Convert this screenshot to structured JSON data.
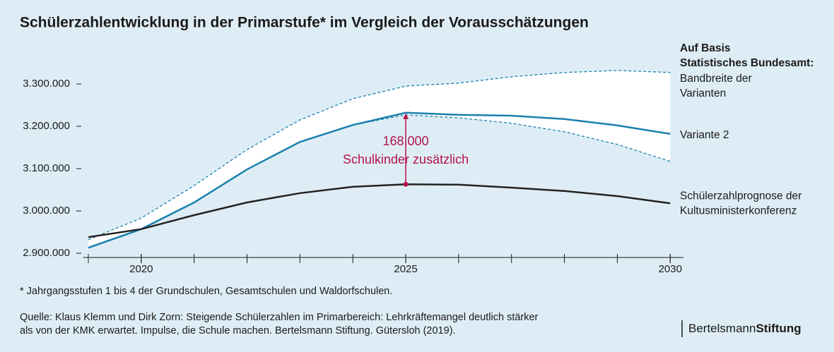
{
  "chart_data": {
    "type": "line",
    "title": "Schülerzahlentwicklung in der Primarstufe* im Vergleich der Vorausschätzungen",
    "x": [
      2019,
      2020,
      2021,
      2022,
      2023,
      2024,
      2025,
      2026,
      2027,
      2028,
      2029,
      2030
    ],
    "xlim": [
      2018.9,
      2030.25
    ],
    "xticks": [
      2020,
      2025,
      2030
    ],
    "ylim": [
      2890000,
      3350000
    ],
    "yticks": [
      {
        "value": 2900000,
        "label": "2.900.000"
      },
      {
        "value": 3000000,
        "label": "3.000.000"
      },
      {
        "value": 3100000,
        "label": "3.100.000"
      },
      {
        "value": 3200000,
        "label": "3.200.000"
      },
      {
        "value": 3300000,
        "label": "3.300.000"
      }
    ],
    "legend_title": [
      "Auf Basis",
      "Statistisches Bundesamt:"
    ],
    "band": {
      "name": [
        "Bandbreite der",
        "Varianten"
      ],
      "color": "#1a80ae",
      "fill": "#ffffff",
      "upper": [
        2932000,
        2983000,
        3060000,
        3145000,
        3215000,
        3265000,
        3295000,
        3302000,
        3317000,
        3327000,
        3332000,
        3327000
      ],
      "lower": [
        2913000,
        2957000,
        3020000,
        3098000,
        3163000,
        3203000,
        3227000,
        3220000,
        3207000,
        3187000,
        3157000,
        3117000
      ]
    },
    "series": [
      {
        "name": [
          "Variante 2"
        ],
        "color": "#1a80ae",
        "values": [
          2913000,
          2957000,
          3020000,
          3098000,
          3163000,
          3203000,
          3232000,
          3227000,
          3225000,
          3217000,
          3202000,
          3182000
        ]
      },
      {
        "name": [
          "Schülerzahlprognose der",
          "Kultusministerkonferenz"
        ],
        "color": "#222222",
        "values": [
          2938000,
          2957000,
          2990000,
          3020000,
          3042000,
          3057000,
          3063000,
          3062000,
          3055000,
          3047000,
          3035000,
          3018000
        ]
      }
    ],
    "annotation": {
      "x": 2025,
      "text": [
        "168.000",
        "Schulkinder zusätzlich"
      ],
      "color": "#b5134a"
    },
    "footnote": "* Jahrgangsstufen 1 bis 4 der Grundschulen, Gesamtschulen und Waldorfschulen.",
    "source": [
      "Quelle: Klaus Klemm und Dirk Zorn: Steigende Schülerzahlen im Primarbereich: Lehrkräftemangel deutlich stärker",
      "als von der KMK erwartet. Impulse, die Schule machen. Bertelsmann Stiftung. Gütersloh (2019)."
    ],
    "logo": [
      "Bertelsmann",
      "Stiftung"
    ]
  }
}
